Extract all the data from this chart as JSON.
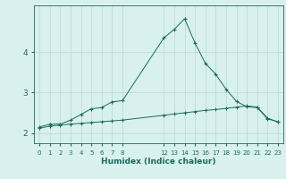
{
  "xlabel": "Humidex (Indice chaleur)",
  "bg_color": "#d8f0ee",
  "line_color": "#1a6b5a",
  "grid_color": "#b8d8d4",
  "x_upper": [
    0,
    1,
    2,
    3,
    4,
    5,
    6,
    7,
    8,
    12,
    13,
    14,
    15,
    16,
    17,
    18,
    19,
    20,
    21,
    22,
    23
  ],
  "y_upper": [
    2.15,
    2.22,
    2.22,
    2.32,
    2.46,
    2.6,
    2.63,
    2.77,
    2.8,
    4.35,
    4.56,
    4.82,
    4.22,
    3.72,
    3.45,
    3.08,
    2.78,
    2.65,
    2.63,
    2.35,
    2.28
  ],
  "x_lower": [
    0,
    1,
    2,
    3,
    4,
    5,
    6,
    7,
    8,
    12,
    13,
    14,
    15,
    16,
    17,
    18,
    19,
    20,
    21,
    22,
    23
  ],
  "y_lower": [
    2.12,
    2.17,
    2.2,
    2.22,
    2.24,
    2.26,
    2.28,
    2.3,
    2.32,
    2.44,
    2.47,
    2.5,
    2.53,
    2.56,
    2.58,
    2.61,
    2.64,
    2.67,
    2.64,
    2.37,
    2.27
  ],
  "yticks": [
    2,
    3,
    4
  ],
  "xticks_left": [
    0,
    1,
    2,
    3,
    4,
    5,
    6,
    7,
    8
  ],
  "xticks_right": [
    12,
    13,
    14,
    15,
    16,
    17,
    18,
    19,
    20,
    21,
    22,
    23
  ],
  "ylim": [
    1.75,
    5.15
  ],
  "xlim": [
    -0.5,
    23.5
  ]
}
